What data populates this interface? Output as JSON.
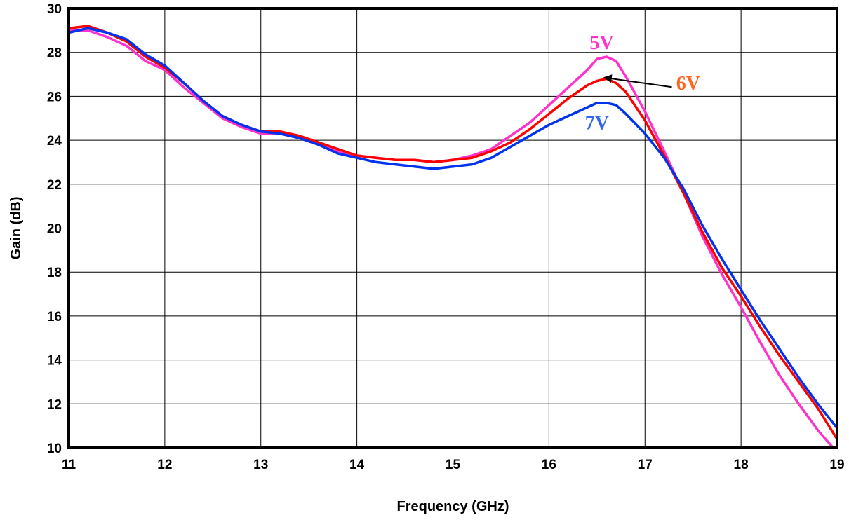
{
  "chart_data": {
    "type": "line",
    "title": "",
    "xlabel": "Frequency (GHz)",
    "ylabel": "Gain (dB)",
    "xlim": [
      11,
      19
    ],
    "ylim": [
      10,
      30
    ],
    "xticks": [
      "11",
      "12",
      "13",
      "14",
      "15",
      "16",
      "17",
      "18",
      "19"
    ],
    "yticks": [
      "10",
      "12",
      "14",
      "16",
      "18",
      "20",
      "22",
      "24",
      "26",
      "28",
      "30"
    ],
    "grid": true,
    "legend": "none",
    "series": [
      {
        "name": "5V",
        "color": "#ff33cc",
        "x": [
          11,
          11.2,
          11.4,
          11.6,
          11.8,
          12,
          12.2,
          12.4,
          12.6,
          12.8,
          13,
          13.2,
          13.4,
          13.6,
          13.8,
          14,
          14.2,
          14.4,
          14.6,
          14.8,
          15,
          15.2,
          15.4,
          15.6,
          15.8,
          16,
          16.2,
          16.4,
          16.5,
          16.6,
          16.7,
          16.8,
          17,
          17.2,
          17.4,
          17.6,
          17.8,
          18,
          18.2,
          18.4,
          18.6,
          18.8,
          19
        ],
        "y": [
          29.0,
          29.0,
          28.7,
          28.3,
          27.6,
          27.2,
          26.4,
          25.7,
          25.0,
          24.6,
          24.3,
          24.3,
          24.1,
          23.8,
          23.5,
          23.3,
          23.2,
          23.1,
          23.1,
          23.0,
          23.1,
          23.3,
          23.6,
          24.2,
          24.8,
          25.6,
          26.4,
          27.2,
          27.7,
          27.8,
          27.6,
          26.9,
          25.3,
          23.5,
          21.6,
          19.6,
          17.9,
          16.4,
          14.8,
          13.3,
          12.0,
          10.8,
          9.8
        ]
      },
      {
        "name": "6V",
        "color": "#ff0000",
        "x": [
          11,
          11.2,
          11.4,
          11.6,
          11.8,
          12,
          12.2,
          12.4,
          12.6,
          12.8,
          13,
          13.2,
          13.4,
          13.6,
          13.8,
          14,
          14.2,
          14.4,
          14.6,
          14.8,
          15,
          15.2,
          15.4,
          15.6,
          15.8,
          16,
          16.2,
          16.4,
          16.5,
          16.6,
          16.7,
          16.8,
          17,
          17.2,
          17.4,
          17.6,
          17.8,
          18,
          18.2,
          18.4,
          18.6,
          18.8,
          19
        ],
        "y": [
          29.1,
          29.2,
          28.9,
          28.5,
          27.8,
          27.3,
          26.6,
          25.8,
          25.1,
          24.7,
          24.4,
          24.4,
          24.2,
          23.9,
          23.6,
          23.3,
          23.2,
          23.1,
          23.1,
          23.0,
          23.1,
          23.2,
          23.5,
          23.9,
          24.5,
          25.2,
          25.9,
          26.5,
          26.7,
          26.8,
          26.6,
          26.2,
          24.9,
          23.3,
          21.6,
          19.8,
          18.2,
          16.9,
          15.5,
          14.2,
          13.0,
          11.8,
          10.4
        ]
      },
      {
        "name": "7V",
        "color": "#0033ee",
        "x": [
          11,
          11.2,
          11.4,
          11.6,
          11.8,
          12,
          12.2,
          12.4,
          12.6,
          12.8,
          13,
          13.2,
          13.4,
          13.6,
          13.8,
          14,
          14.2,
          14.4,
          14.6,
          14.8,
          15,
          15.2,
          15.4,
          15.6,
          15.8,
          16,
          16.2,
          16.4,
          16.5,
          16.6,
          16.7,
          16.8,
          17,
          17.2,
          17.4,
          17.6,
          17.8,
          18,
          18.2,
          18.4,
          18.6,
          18.8,
          19
        ],
        "y": [
          28.9,
          29.1,
          28.9,
          28.6,
          27.9,
          27.4,
          26.6,
          25.8,
          25.1,
          24.7,
          24.4,
          24.3,
          24.1,
          23.8,
          23.4,
          23.2,
          23.0,
          22.9,
          22.8,
          22.7,
          22.8,
          22.9,
          23.2,
          23.7,
          24.2,
          24.7,
          25.1,
          25.5,
          25.7,
          25.7,
          25.6,
          25.2,
          24.3,
          23.2,
          21.8,
          20.1,
          18.6,
          17.2,
          15.8,
          14.5,
          13.2,
          12.0,
          10.9
        ]
      }
    ],
    "annotations": [
      {
        "text": "5V",
        "x": 16.55,
        "y": 28.15,
        "color": "#ff33cc"
      },
      {
        "text": "6V",
        "x": 17.45,
        "y": 26.3,
        "color": "#ff6622"
      },
      {
        "text": "7V",
        "x": 16.5,
        "y": 24.5,
        "color": "#3366ee"
      }
    ],
    "arrow": {
      "from": [
        17.28,
        26.42
      ],
      "to": [
        16.58,
        26.85
      ],
      "color": "#000000"
    }
  }
}
